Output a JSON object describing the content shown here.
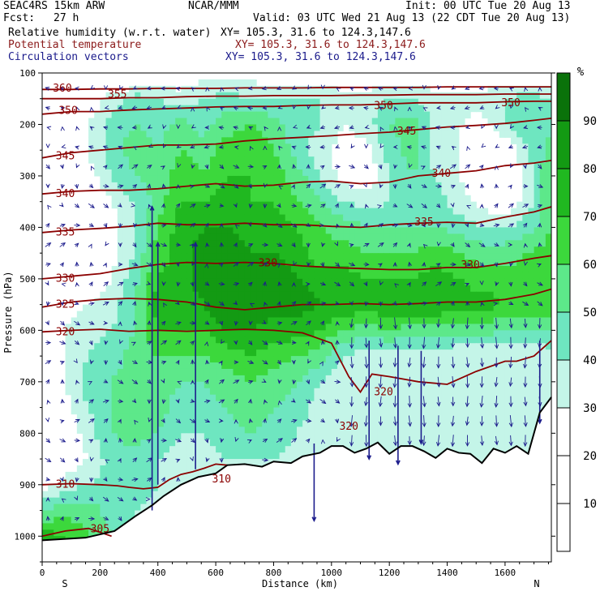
{
  "header": {
    "model": "SEAC4RS 15km ARW",
    "org": "NCAR/MMM",
    "init": "Init: 00 UTC Tue 20 Aug 13",
    "fcst_label": "Fcst:",
    "fcst_value": "27 h",
    "valid": "Valid: 03 UTC Wed 21 Aug 13 (22 CDT Tue 20 Aug 13)",
    "field1_name": "Relative humidity (w.r.t. water)",
    "field1_xy": "XY= 105.3, 31.6 to 124.3,147.6",
    "field2_name": "Potential temperature",
    "field2_xy": "XY= 105.3, 31.6 to 124.3,147.6",
    "field3_name": "Circulation vectors",
    "field3_xy": "XY= 105.3, 31.6 to 124.3,147.6"
  },
  "colors": {
    "field1": "#000000",
    "field2": "#8b1a1a",
    "field3": "#1a1a8b",
    "theta": "#8b0000",
    "vectors": "#1c1c8c",
    "terrain": "#000000"
  },
  "chart_data": {
    "type": "heatmap",
    "title": "",
    "xlabel": "Distance (km)",
    "ylabel": "Pressure (hPa)",
    "xlim": [
      0,
      1760
    ],
    "ylim": [
      1050,
      100
    ],
    "x_ticks": [
      0,
      200,
      400,
      600,
      800,
      1000,
      1200,
      1400,
      1600
    ],
    "y_ticks": [
      100,
      200,
      300,
      400,
      500,
      600,
      700,
      800,
      900,
      1000
    ],
    "x_end_labels": [
      "S",
      "N"
    ],
    "colorbar": {
      "unit": "%",
      "ticks": [
        10,
        20,
        30,
        40,
        50,
        60,
        70,
        80,
        90
      ],
      "levels": [
        0,
        30,
        40,
        50,
        60,
        70,
        80,
        90,
        100
      ],
      "colors": [
        "#ffffff",
        "#c4f5e8",
        "#6ee6c0",
        "#5de88a",
        "#3cd83c",
        "#20b820",
        "#139a13",
        "#0a720a"
      ]
    },
    "rh_field": {
      "x": [
        0,
        80,
        160,
        240,
        320,
        400,
        480,
        560,
        640,
        720,
        800,
        880,
        960,
        1040,
        1120,
        1200,
        1280,
        1360,
        1440,
        1520,
        1600,
        1680,
        1760
      ],
      "p": [
        100,
        150,
        200,
        250,
        300,
        350,
        400,
        450,
        500,
        550,
        600,
        650,
        700,
        750,
        800,
        850,
        900,
        950,
        1000
      ],
      "values": [
        [
          5,
          5,
          5,
          10,
          10,
          20,
          20,
          25,
          25,
          25,
          20,
          20,
          20,
          20,
          20,
          20,
          20,
          20,
          20,
          20,
          20,
          20,
          20
        ],
        [
          10,
          15,
          20,
          35,
          45,
          40,
          35,
          40,
          45,
          40,
          40,
          40,
          40,
          35,
          35,
          40,
          40,
          35,
          35,
          35,
          40,
          45,
          40
        ],
        [
          20,
          20,
          30,
          45,
          50,
          45,
          55,
          45,
          55,
          60,
          55,
          45,
          40,
          30,
          35,
          50,
          55,
          35,
          30,
          25,
          40,
          50,
          45
        ],
        [
          15,
          20,
          30,
          45,
          55,
          50,
          60,
          55,
          65,
          70,
          60,
          45,
          35,
          25,
          25,
          45,
          55,
          35,
          30,
          15,
          20,
          40,
          55
        ],
        [
          10,
          15,
          25,
          40,
          50,
          55,
          65,
          60,
          70,
          70,
          65,
          55,
          40,
          25,
          20,
          40,
          50,
          40,
          30,
          15,
          15,
          35,
          60
        ],
        [
          10,
          15,
          20,
          30,
          40,
          55,
          70,
          70,
          75,
          70,
          70,
          60,
          50,
          40,
          35,
          40,
          45,
          45,
          35,
          25,
          20,
          35,
          60
        ],
        [
          5,
          10,
          15,
          25,
          40,
          60,
          75,
          80,
          80,
          75,
          75,
          70,
          60,
          55,
          50,
          50,
          50,
          50,
          45,
          40,
          40,
          45,
          60
        ],
        [
          10,
          10,
          15,
          25,
          40,
          65,
          75,
          85,
          85,
          80,
          80,
          75,
          65,
          65,
          60,
          60,
          60,
          65,
          60,
          55,
          55,
          60,
          65
        ],
        [
          15,
          15,
          20,
          30,
          45,
          70,
          75,
          85,
          90,
          85,
          85,
          80,
          75,
          75,
          70,
          70,
          70,
          75,
          70,
          65,
          65,
          65,
          70
        ],
        [
          20,
          25,
          30,
          35,
          50,
          75,
          75,
          80,
          90,
          90,
          85,
          85,
          80,
          80,
          75,
          80,
          80,
          80,
          75,
          75,
          70,
          70,
          70
        ],
        [
          25,
          30,
          35,
          40,
          50,
          70,
          70,
          70,
          80,
          80,
          75,
          75,
          70,
          60,
          55,
          60,
          55,
          55,
          55,
          55,
          50,
          50,
          50
        ],
        [
          20,
          30,
          40,
          45,
          55,
          60,
          60,
          60,
          65,
          70,
          65,
          60,
          55,
          40,
          35,
          35,
          35,
          35,
          30,
          30,
          30,
          30,
          35
        ],
        [
          15,
          30,
          45,
          50,
          55,
          55,
          50,
          50,
          55,
          60,
          55,
          50,
          40,
          30,
          30,
          30,
          30,
          30,
          30,
          30,
          30,
          30,
          30
        ],
        [
          15,
          25,
          40,
          50,
          55,
          55,
          45,
          45,
          50,
          55,
          50,
          45,
          35,
          30,
          30,
          30,
          30,
          30,
          30,
          30,
          30,
          30,
          30
        ],
        [
          10,
          20,
          35,
          50,
          55,
          50,
          40,
          40,
          45,
          50,
          45,
          40,
          35,
          30,
          30,
          30,
          30,
          30,
          30,
          30,
          30,
          30,
          30
        ],
        [
          10,
          20,
          30,
          45,
          45,
          40,
          35,
          35,
          40,
          40,
          40,
          35,
          30,
          30,
          30,
          30,
          30,
          30,
          30,
          30,
          30,
          30,
          30
        ],
        [
          25,
          35,
          40,
          45,
          45,
          40,
          30,
          30,
          30,
          30,
          30,
          30,
          30,
          30,
          30,
          30,
          30,
          30,
          30,
          30,
          30,
          30,
          30
        ],
        [
          50,
          55,
          55,
          45,
          40,
          35,
          30,
          30,
          30,
          30,
          30,
          30,
          30,
          30,
          30,
          30,
          30,
          30,
          30,
          30,
          30,
          30,
          30
        ],
        [
          75,
          70,
          60,
          50,
          40,
          30,
          30,
          30,
          30,
          30,
          30,
          30,
          30,
          30,
          30,
          30,
          30,
          30,
          30,
          30,
          30,
          30,
          30
        ]
      ]
    },
    "terrain": {
      "x": [
        0,
        150,
        250,
        320,
        380,
        420,
        480,
        540,
        600,
        640,
        700,
        760,
        800,
        860,
        900,
        960,
        1000,
        1040,
        1080,
        1120,
        1160,
        1200,
        1240,
        1280,
        1320,
        1360,
        1400,
        1440,
        1480,
        1520,
        1560,
        1600,
        1640,
        1680,
        1720,
        1760
      ],
      "p": [
        1008,
        1003,
        990,
        962,
        940,
        922,
        900,
        885,
        878,
        862,
        860,
        865,
        855,
        858,
        845,
        838,
        825,
        825,
        838,
        830,
        818,
        840,
        825,
        825,
        835,
        848,
        830,
        838,
        840,
        858,
        830,
        838,
        825,
        840,
        760,
        730
      ]
    },
    "theta_contours": [
      {
        "label": "305",
        "x": [
          0,
          80,
          160,
          240
        ],
        "p": [
          1000,
          990,
          985,
          1000
        ]
      },
      {
        "label": "310",
        "x": [
          0,
          100,
          200,
          260,
          300,
          350,
          400,
          440,
          480,
          520,
          560,
          600,
          640
        ],
        "p": [
          900,
          898,
          900,
          902,
          905,
          908,
          905,
          890,
          880,
          875,
          868,
          860,
          862
        ]
      },
      {
        "label": "320",
        "x": [
          0,
          100,
          200,
          300,
          400,
          500,
          600,
          700,
          800,
          900,
          1000,
          1060,
          1100,
          1140,
          1200,
          1300,
          1400,
          1500,
          1600,
          1640,
          1700,
          1760
        ],
        "p": [
          603,
          600,
          598,
          602,
          600,
          602,
          600,
          598,
          600,
          605,
          625,
          690,
          720,
          685,
          690,
          700,
          705,
          680,
          660,
          660,
          650,
          620
        ]
      },
      {
        "label": "325",
        "x": [
          0,
          100,
          200,
          300,
          400,
          500,
          600,
          700,
          800,
          900,
          1000,
          1100,
          1200,
          1300,
          1400,
          1500,
          1600,
          1700,
          1760
        ],
        "p": [
          555,
          545,
          540,
          538,
          540,
          545,
          555,
          560,
          555,
          550,
          550,
          548,
          550,
          548,
          545,
          545,
          540,
          530,
          520
        ]
      },
      {
        "label": "330",
        "x": [
          0,
          100,
          200,
          300,
          400,
          500,
          600,
          700,
          800,
          900,
          1000,
          1100,
          1200,
          1300,
          1400,
          1500,
          1600,
          1700,
          1760
        ],
        "p": [
          500,
          495,
          490,
          480,
          472,
          468,
          470,
          468,
          470,
          475,
          478,
          480,
          482,
          482,
          478,
          478,
          470,
          460,
          455
        ]
      },
      {
        "label": "335",
        "x": [
          0,
          100,
          200,
          300,
          400,
          500,
          600,
          700,
          800,
          900,
          1000,
          1100,
          1200,
          1300,
          1400,
          1500,
          1600,
          1700,
          1760
        ],
        "p": [
          410,
          405,
          402,
          398,
          392,
          395,
          395,
          392,
          395,
          395,
          398,
          400,
          395,
          392,
          390,
          392,
          380,
          370,
          360
        ]
      },
      {
        "label": "340",
        "x": [
          0,
          100,
          200,
          300,
          400,
          500,
          600,
          700,
          800,
          900,
          1000,
          1100,
          1200,
          1300,
          1400,
          1500,
          1600,
          1700,
          1760
        ],
        "p": [
          335,
          330,
          328,
          328,
          325,
          320,
          315,
          320,
          318,
          312,
          310,
          315,
          312,
          300,
          295,
          290,
          280,
          275,
          270
        ]
      },
      {
        "label": "345",
        "x": [
          0,
          100,
          200,
          300,
          400,
          500,
          600,
          700,
          800,
          900,
          1000,
          1100,
          1200,
          1300,
          1400,
          1500,
          1600,
          1700,
          1760
        ],
        "p": [
          265,
          255,
          250,
          245,
          240,
          240,
          238,
          232,
          228,
          225,
          222,
          218,
          215,
          210,
          205,
          202,
          198,
          192,
          188
        ]
      },
      {
        "label": "350",
        "x": [
          0,
          100,
          200,
          300,
          400,
          500,
          600,
          700,
          800,
          900,
          1000,
          1100,
          1200,
          1300,
          1400,
          1500,
          1600,
          1700,
          1760
        ],
        "p": [
          180,
          175,
          175,
          172,
          170,
          168,
          166,
          165,
          165,
          163,
          162,
          162,
          160,
          158,
          158,
          158,
          156,
          155,
          155
        ]
      },
      {
        "label": "355",
        "x": [
          0,
          100,
          200,
          300,
          400,
          500,
          600,
          700,
          800,
          900,
          1000,
          1100,
          1200,
          1300,
          1400,
          1500,
          1600,
          1700,
          1760
        ],
        "p": [
          150,
          150,
          150,
          148,
          148,
          146,
          145,
          145,
          144,
          144,
          144,
          143,
          143,
          142,
          142,
          142,
          141,
          141,
          141
        ]
      },
      {
        "label": "360",
        "x": [
          0,
          100,
          200,
          300,
          400,
          500,
          600,
          700,
          800,
          900,
          1000,
          1100,
          1200,
          1300,
          1400,
          1500,
          1600,
          1700,
          1760
        ],
        "p": [
          132,
          132,
          131,
          131,
          130,
          130,
          130,
          129,
          129,
          129,
          128,
          128,
          128,
          128,
          127,
          127,
          127,
          127,
          127
        ]
      }
    ],
    "theta_labels": [
      {
        "text": "360",
        "x": 70,
        "p": 128
      },
      {
        "text": "355",
        "x": 260,
        "p": 140
      },
      {
        "text": "350",
        "x": 90,
        "p": 172
      },
      {
        "text": "350",
        "x": 1180,
        "p": 162
      },
      {
        "text": "350",
        "x": 1620,
        "p": 157
      },
      {
        "text": "345",
        "x": 80,
        "p": 260
      },
      {
        "text": "345",
        "x": 1260,
        "p": 212
      },
      {
        "text": "340",
        "x": 80,
        "p": 333
      },
      {
        "text": "340",
        "x": 1380,
        "p": 294
      },
      {
        "text": "335",
        "x": 80,
        "p": 408
      },
      {
        "text": "335",
        "x": 1320,
        "p": 388
      },
      {
        "text": "330",
        "x": 80,
        "p": 498
      },
      {
        "text": "330",
        "x": 780,
        "p": 468
      },
      {
        "text": "330",
        "x": 1480,
        "p": 472
      },
      {
        "text": "325",
        "x": 80,
        "p": 548
      },
      {
        "text": "320",
        "x": 80,
        "p": 602
      },
      {
        "text": "320",
        "x": 1180,
        "p": 718
      },
      {
        "text": "320",
        "x": 1060,
        "p": 785
      },
      {
        "text": "310",
        "x": 80,
        "p": 898
      },
      {
        "text": "310",
        "x": 620,
        "p": 888
      },
      {
        "text": "305",
        "x": 200,
        "p": 985
      }
    ],
    "vector_strong": [
      {
        "x": 380,
        "p1": 950,
        "p2": 360
      },
      {
        "x": 400,
        "p1": 900,
        "p2": 430
      },
      {
        "x": 530,
        "p1": 870,
        "p2": 430
      },
      {
        "x": 940,
        "p1": 820,
        "p2": 970
      },
      {
        "x": 1130,
        "p1": 620,
        "p2": 850
      },
      {
        "x": 1230,
        "p1": 630,
        "p2": 860
      },
      {
        "x": 1310,
        "p1": 640,
        "p2": 820
      },
      {
        "x": 1720,
        "p1": 620,
        "p2": 780
      }
    ]
  }
}
